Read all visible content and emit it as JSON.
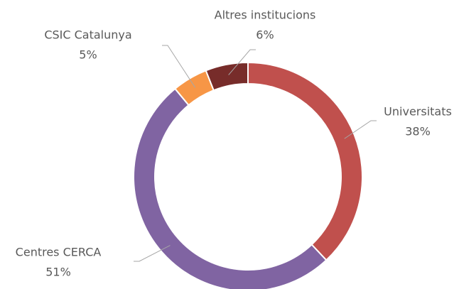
{
  "chart_data": {
    "type": "donut",
    "categories": [
      "Universitats",
      "Centres CERCA",
      "CSIC Catalunya",
      "Altres institucions"
    ],
    "values": [
      38,
      51,
      5,
      6
    ],
    "value_labels": [
      "38%",
      "51%",
      "5%",
      "6%"
    ],
    "colors": [
      "#c0504d",
      "#8064a2",
      "#f79646",
      "#772c2a"
    ]
  }
}
